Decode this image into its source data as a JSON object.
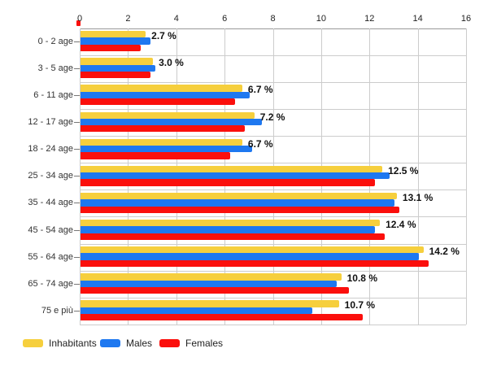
{
  "chart_data": {
    "type": "bar",
    "orientation": "horizontal",
    "title": "",
    "xlabel": "",
    "ylabel": "",
    "xlim": [
      0,
      16
    ],
    "x_ticks": [
      "0",
      "2",
      "4",
      "6",
      "8",
      "10",
      "12",
      "14",
      "16"
    ],
    "grid": true,
    "categories": [
      "0 - 2 age",
      "3 - 5 age",
      "6 - 11 age",
      "12 - 17 age",
      "18 - 24 age",
      "25 - 34 age",
      "35 - 44 age",
      "45 - 54 age",
      "55 - 64 age",
      "65 - 74 age",
      "75 e più"
    ],
    "series": [
      {
        "name": "Inhabitants",
        "color": "#F6CF3D",
        "values": [
          2.7,
          3.0,
          6.7,
          7.2,
          6.7,
          12.5,
          13.1,
          12.4,
          14.2,
          10.8,
          10.7
        ]
      },
      {
        "name": "Males",
        "color": "#1E78F0",
        "values": [
          2.9,
          3.1,
          7.0,
          7.5,
          7.1,
          12.8,
          13.0,
          12.2,
          14.0,
          10.6,
          9.6
        ]
      },
      {
        "name": "Females",
        "color": "#FB0F0C",
        "values": [
          2.5,
          2.9,
          6.4,
          6.8,
          6.2,
          12.2,
          13.2,
          12.6,
          14.4,
          11.1,
          11.7
        ]
      }
    ],
    "labeled_series": "Inhabitants",
    "bar_labels": [
      "2.7 %",
      "3.0 %",
      "6.7 %",
      "7.2 %",
      "6.7 %",
      "12.5 %",
      "13.1 %",
      "12.4 %",
      "14.2 %",
      "10.8 %",
      "10.7 %"
    ],
    "legend_position": "bottom-left",
    "colors": {
      "grid": "#cccccc",
      "axis": "#999999",
      "tick_label": "#222222",
      "category_label": "#333333",
      "data_label": "#111111",
      "background": "#ffffff"
    }
  }
}
